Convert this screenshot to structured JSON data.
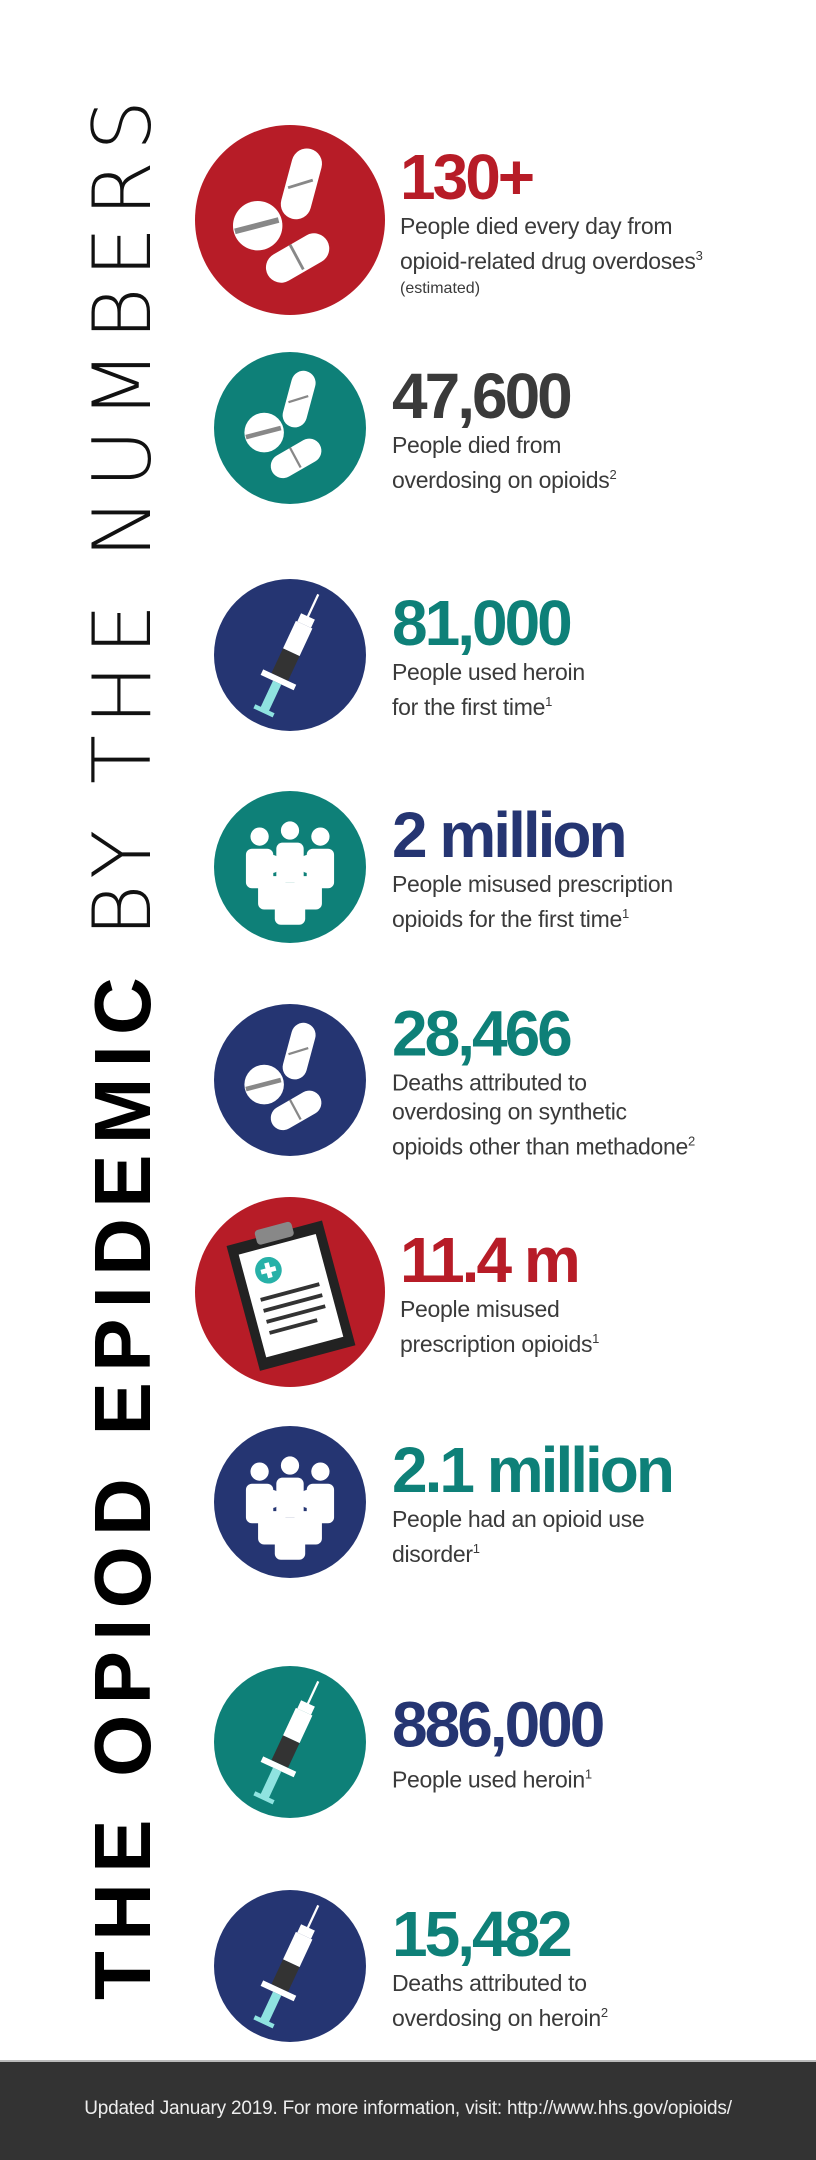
{
  "title": {
    "bold": "THE OPIOD EPIDEMIC",
    "light": "BY THE NUMBERS"
  },
  "colors": {
    "red": "#b71c27",
    "teal": "#0e8078",
    "navy": "#253572",
    "dark": "#3a3a3a",
    "footer": "#333333"
  },
  "stats": [
    {
      "number": "130+",
      "lines": [
        "People died every day from",
        "opioid-related drug overdoses"
      ],
      "sup": "3",
      "note": "(estimated)",
      "icon": "pills-icon",
      "circle": "red",
      "numcolor": "red",
      "big": true
    },
    {
      "number": "47,600",
      "lines": [
        "People died from",
        "overdosing on opioids"
      ],
      "sup": "2",
      "icon": "pills-icon",
      "circle": "teal",
      "numcolor": "dark"
    },
    {
      "number": "81,000",
      "lines": [
        "People used heroin",
        "for the first time"
      ],
      "sup": "1",
      "icon": "syringe-icon",
      "circle": "navy",
      "numcolor": "teal"
    },
    {
      "number": "2 million",
      "lines": [
        "People misused prescription",
        "opioids for the first time"
      ],
      "sup": "1",
      "icon": "people-icon",
      "circle": "teal",
      "numcolor": "navy"
    },
    {
      "number": "28,466",
      "lines": [
        "Deaths attributed to",
        "overdosing on synthetic",
        "opioids other than methadone"
      ],
      "sup": "2",
      "icon": "pills-icon",
      "circle": "navy",
      "numcolor": "teal"
    },
    {
      "number": "11.4 m",
      "lines": [
        "People misused",
        "prescription opioids"
      ],
      "sup": "1",
      "icon": "clipboard-icon",
      "circle": "red",
      "numcolor": "red",
      "big": true
    },
    {
      "number": "2.1 million",
      "lines": [
        "People had an opioid use",
        "disorder"
      ],
      "sup": "1",
      "icon": "people-icon",
      "circle": "navy",
      "numcolor": "teal"
    },
    {
      "number": "886,000",
      "lines": [
        "People used heroin"
      ],
      "sup": "1",
      "icon": "syringe-icon",
      "circle": "teal",
      "numcolor": "navy"
    },
    {
      "number": "15,482",
      "lines": [
        "Deaths attributed to",
        "overdosing on heroin"
      ],
      "sup": "2",
      "icon": "syringe-icon",
      "circle": "navy",
      "numcolor": "teal"
    }
  ],
  "footer": {
    "text": "Updated January 2019. For more information, visit: http://www.hhs.gov/opioids/"
  }
}
